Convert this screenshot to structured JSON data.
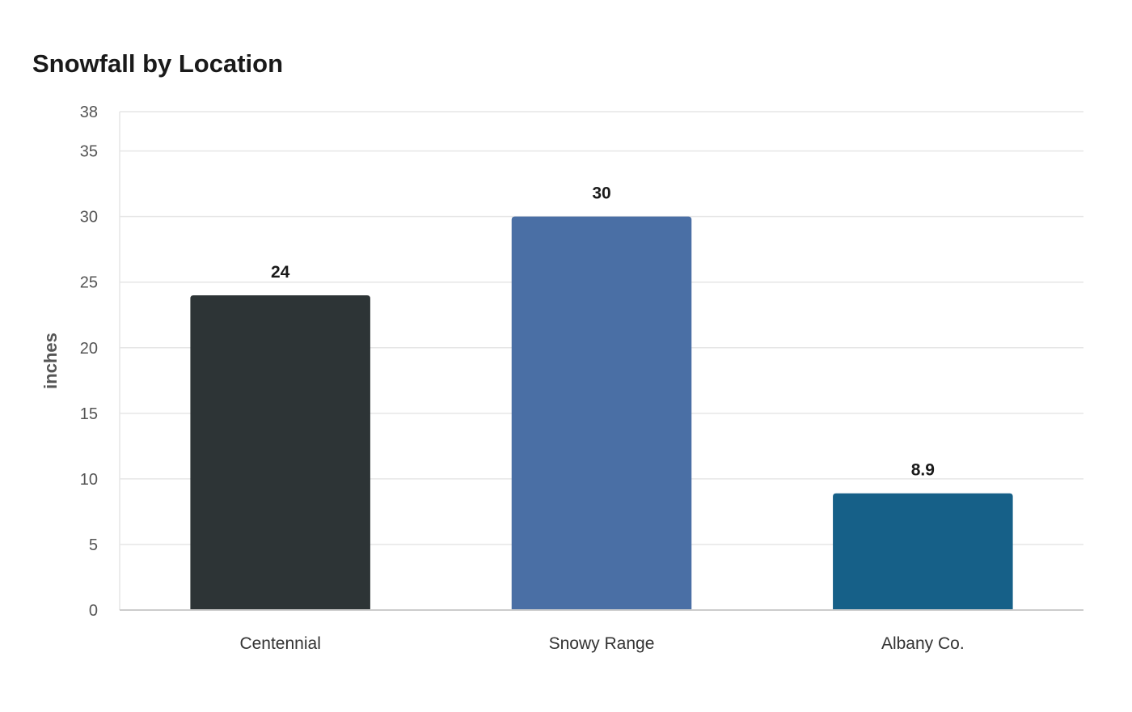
{
  "chart_data": {
    "type": "bar",
    "title": "Snowfall by Location",
    "xlabel": "",
    "ylabel": "inches",
    "categories": [
      "Centennial",
      "Snowy Range",
      "Albany Co."
    ],
    "values": [
      24,
      30,
      8.9
    ],
    "value_labels": [
      "24",
      "30",
      "8.9"
    ],
    "colors": [
      "#2d3436",
      "#4a6fa5",
      "#166088"
    ],
    "ylim": [
      0,
      38
    ],
    "yticks": [
      0,
      5,
      10,
      15,
      20,
      25,
      30,
      35,
      38
    ],
    "grid": true,
    "legend": "none"
  }
}
